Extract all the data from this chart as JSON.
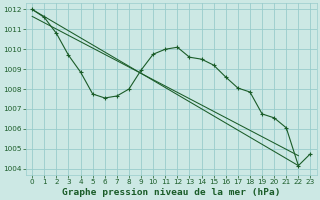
{
  "bg_color": "#cce8e4",
  "grid_color": "#99cccc",
  "line_color": "#1a5c28",
  "title": "Graphe pression niveau de la mer (hPa)",
  "ylim": [
    1003.7,
    1012.3
  ],
  "xlim": [
    -0.5,
    23.5
  ],
  "yticks": [
    1004,
    1005,
    1006,
    1007,
    1008,
    1009,
    1010,
    1011,
    1012
  ],
  "xticks": [
    0,
    1,
    2,
    3,
    4,
    5,
    6,
    7,
    8,
    9,
    10,
    11,
    12,
    13,
    14,
    15,
    16,
    17,
    18,
    19,
    20,
    21,
    22,
    23
  ],
  "main_x": [
    0,
    1,
    2,
    3,
    4,
    5,
    6,
    7,
    8,
    9,
    10,
    11,
    12,
    13,
    14,
    15,
    16,
    17,
    18,
    19,
    20,
    21,
    22,
    23
  ],
  "main_y": [
    1012.0,
    1011.6,
    1010.8,
    1009.7,
    1008.85,
    1007.75,
    1007.55,
    1007.65,
    1008.0,
    1008.95,
    1009.75,
    1010.0,
    1010.1,
    1009.6,
    1009.5,
    1009.2,
    1008.6,
    1008.05,
    1007.85,
    1006.75,
    1006.55,
    1006.05,
    1004.15,
    1004.75
  ],
  "trend1_x": [
    0,
    22
  ],
  "trend1_y": [
    1012.0,
    1004.15
  ],
  "trend2_x": [
    0,
    22
  ],
  "trend2_y": [
    1011.65,
    1004.65
  ],
  "tick_fontsize": 5.2,
  "title_fontsize": 6.8
}
